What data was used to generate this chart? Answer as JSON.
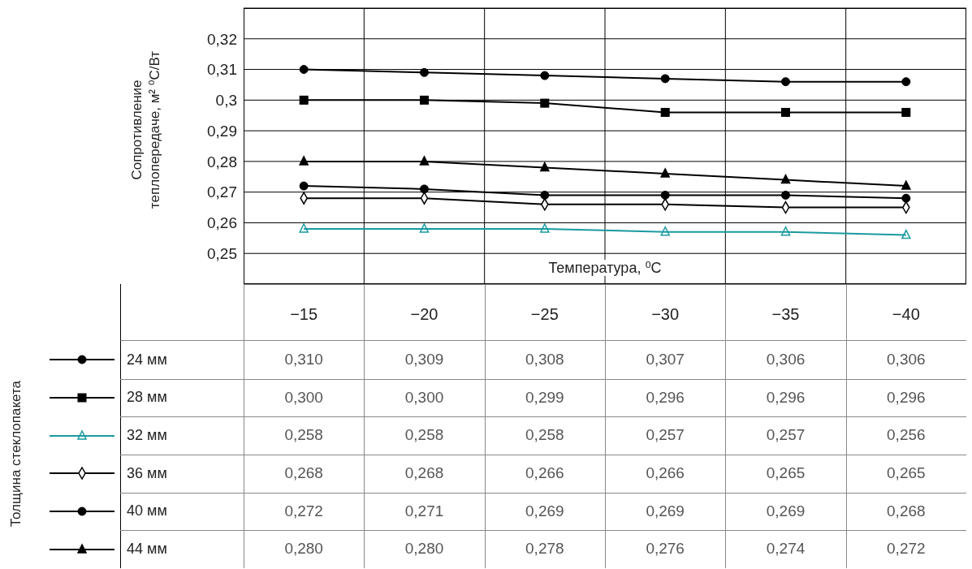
{
  "chart_data": {
    "type": "line",
    "xlabel": "Температура, ⁰C",
    "ylabel": "Сопротивление теплопередаче, м² ⁰C/Вт",
    "legend_title": "Толщина стеклопакета",
    "legend": "bottom",
    "grid": true,
    "line_style": "solid",
    "categories": [
      "−15",
      "−20",
      "−25",
      "−30",
      "−35",
      "−40"
    ],
    "ylim": [
      0.24,
      0.33
    ],
    "yticks": [
      {
        "value": 0.25,
        "label": "0,25"
      },
      {
        "value": 0.26,
        "label": "0,26"
      },
      {
        "value": 0.27,
        "label": "0,27"
      },
      {
        "value": 0.28,
        "label": "0,28"
      },
      {
        "value": 0.29,
        "label": "0,29"
      },
      {
        "value": 0.3,
        "label": "0,3"
      },
      {
        "value": 0.31,
        "label": "0,31"
      },
      {
        "value": 0.32,
        "label": "0,32"
      }
    ],
    "series": [
      {
        "name": "24 мм",
        "color": "#000000",
        "marker": "circle",
        "values": [
          0.31,
          0.309,
          0.308,
          0.307,
          0.306,
          0.306
        ],
        "value_labels": [
          "0,310",
          "0,309",
          "0,308",
          "0,307",
          "0,306",
          "0,306"
        ]
      },
      {
        "name": "28 мм",
        "color": "#000000",
        "marker": "square",
        "values": [
          0.3,
          0.3,
          0.299,
          0.296,
          0.296,
          0.296
        ],
        "value_labels": [
          "0,300",
          "0,300",
          "0,299",
          "0,296",
          "0,296",
          "0,296"
        ]
      },
      {
        "name": "32 мм",
        "color": "#1a9aa0",
        "marker": "triangle",
        "values": [
          0.258,
          0.258,
          0.258,
          0.257,
          0.257,
          0.256
        ],
        "value_labels": [
          "0,258",
          "0,258",
          "0,258",
          "0,257",
          "0,257",
          "0,256"
        ]
      },
      {
        "name": "36 мм",
        "color": "#000000",
        "marker": "diamond",
        "values": [
          0.268,
          0.268,
          0.266,
          0.266,
          0.265,
          0.265
        ],
        "value_labels": [
          "0,268",
          "0,268",
          "0,266",
          "0,266",
          "0,265",
          "0,265"
        ]
      },
      {
        "name": "40 мм",
        "color": "#000000",
        "marker": "circle",
        "values": [
          0.272,
          0.271,
          0.269,
          0.269,
          0.269,
          0.268
        ],
        "value_labels": [
          "0,272",
          "0,271",
          "0,269",
          "0,269",
          "0,269",
          "0,268"
        ]
      },
      {
        "name": "44 мм",
        "color": "#000000",
        "marker": "triangle",
        "values": [
          0.28,
          0.28,
          0.278,
          0.276,
          0.274,
          0.272
        ],
        "value_labels": [
          "0,280",
          "0,280",
          "0,278",
          "0,276",
          "0,274",
          "0,272"
        ]
      }
    ]
  }
}
